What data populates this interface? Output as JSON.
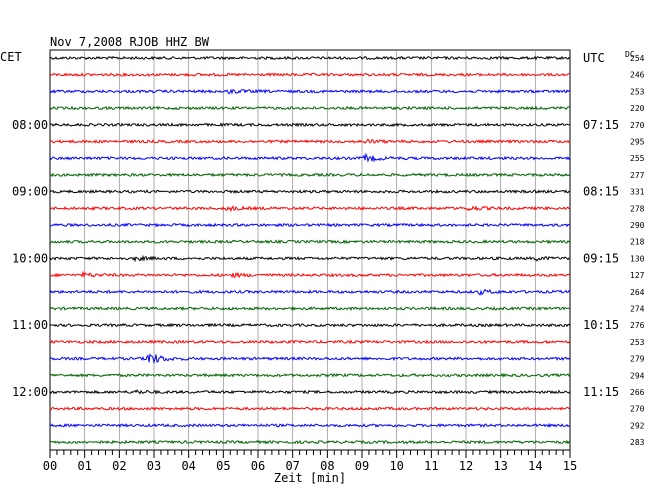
{
  "chart_data": {
    "type": "line",
    "title": "Nov 7,2008   RJOB HHZ BW",
    "left_zone": "CET",
    "right_zone": "UTC",
    "dc_header": "DC",
    "xlabel": "Zeit [min]",
    "xlim": [
      0,
      15
    ],
    "x_ticks": [
      "00",
      "01",
      "02",
      "03",
      "04",
      "05",
      "06",
      "07",
      "08",
      "09",
      "10",
      "11",
      "12",
      "13",
      "14",
      "15"
    ],
    "trace_count": 24,
    "trace_colors": [
      "#000000",
      "#ff0000",
      "#0000ff",
      "#006400"
    ],
    "grid": true,
    "left_hour_labels": [
      {
        "trace": 4,
        "text": "08:00"
      },
      {
        "trace": 8,
        "text": "09:00"
      },
      {
        "trace": 12,
        "text": "10:00"
      },
      {
        "trace": 16,
        "text": "11:00"
      },
      {
        "trace": 20,
        "text": "12:00"
      }
    ],
    "right_hour_labels": [
      {
        "trace": 0,
        "text": "UTC"
      },
      {
        "trace": 4,
        "text": "07:15"
      },
      {
        "trace": 8,
        "text": "08:15"
      },
      {
        "trace": 12,
        "text": "09:15"
      },
      {
        "trace": 16,
        "text": "10:15"
      },
      {
        "trace": 20,
        "text": "11:15"
      }
    ],
    "dc_values": [
      "254",
      "246",
      "253",
      "220",
      "270",
      "295",
      "255",
      "277",
      "331",
      "278",
      "290",
      "218",
      "130",
      "127",
      "264",
      "274",
      "276",
      "253",
      "279",
      "294",
      "266",
      "270",
      "292",
      "283"
    ],
    "events": [
      {
        "trace": 2,
        "t": 5.2,
        "amp": 1.5
      },
      {
        "trace": 5,
        "t": 9.1,
        "amp": 1.6
      },
      {
        "trace": 6,
        "t": 9.1,
        "amp": 3.0
      },
      {
        "trace": 9,
        "t": 5.1,
        "amp": 1.8
      },
      {
        "trace": 9,
        "t": 12.1,
        "amp": 1.6
      },
      {
        "trace": 12,
        "t": 2.5,
        "amp": 1.4
      },
      {
        "trace": 12,
        "t": 14.0,
        "amp": 1.4
      },
      {
        "trace": 13,
        "t": 1.0,
        "amp": 1.6
      },
      {
        "trace": 13,
        "t": 5.3,
        "amp": 1.3
      },
      {
        "trace": 14,
        "t": 12.4,
        "amp": 1.8
      },
      {
        "trace": 18,
        "t": 2.8,
        "amp": 7.0
      },
      {
        "trace": 20,
        "t": 2.5,
        "amp": 1.3
      }
    ]
  }
}
